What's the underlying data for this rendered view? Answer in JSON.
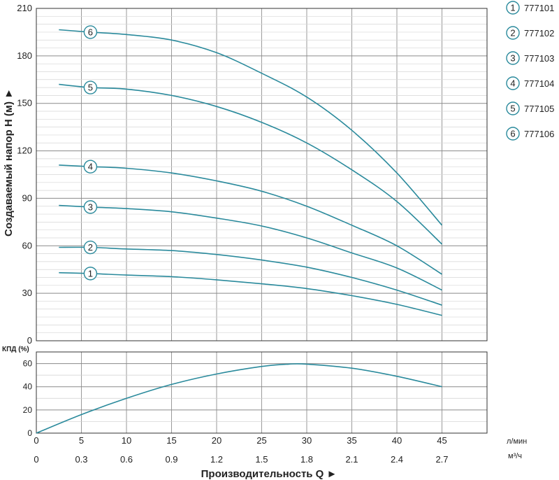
{
  "chart_data": [
    {
      "type": "line",
      "ylabel": "Создаваемый напор H (м) ►",
      "xlabel": "Производительность Q ►",
      "x_units_primary": "л/мин",
      "x_units_secondary": "м³/ч",
      "xlim": [
        0,
        50
      ],
      "ylim": [
        0,
        210
      ],
      "x_ticks": [
        0,
        5,
        10,
        15,
        20,
        25,
        30,
        35,
        40,
        45
      ],
      "x_ticks_secondary": [
        "0",
        "0.3",
        "0.6",
        "0.9",
        "1.2",
        "1.5",
        "1.8",
        "2.1",
        "2.4",
        "2.7"
      ],
      "y_ticks": [
        0,
        30,
        60,
        90,
        120,
        150,
        180,
        210
      ],
      "grid": true,
      "legend_position": "right",
      "line_color": "#2a8a9c",
      "series": [
        {
          "name": "777101",
          "marker": "1",
          "marker_x": 6,
          "x": [
            2.5,
            6,
            10,
            15,
            20,
            25,
            30,
            35,
            40,
            45
          ],
          "y": [
            43,
            42.5,
            41.5,
            40.5,
            38.5,
            36,
            33,
            28.5,
            23,
            16
          ]
        },
        {
          "name": "777102",
          "marker": "2",
          "marker_x": 6,
          "x": [
            2.5,
            6,
            10,
            15,
            20,
            25,
            30,
            35,
            40,
            45
          ],
          "y": [
            59,
            59,
            58,
            57,
            54.5,
            51,
            46.5,
            40,
            32,
            22.5
          ]
        },
        {
          "name": "777103",
          "marker": "3",
          "marker_x": 6,
          "x": [
            2.5,
            6,
            10,
            15,
            20,
            25,
            30,
            35,
            40,
            45
          ],
          "y": [
            85.5,
            84.5,
            83.5,
            81.5,
            77.5,
            72.5,
            65,
            55.5,
            46,
            32
          ]
        },
        {
          "name": "777104",
          "marker": "4",
          "marker_x": 6,
          "x": [
            2.5,
            6,
            10,
            15,
            20,
            25,
            30,
            35,
            40,
            45
          ],
          "y": [
            111,
            110,
            109,
            106,
            101,
            94.5,
            85,
            73,
            60,
            42
          ]
        },
        {
          "name": "777105",
          "marker": "5",
          "marker_x": 6,
          "x": [
            2.5,
            6,
            10,
            15,
            20,
            25,
            30,
            35,
            40,
            45
          ],
          "y": [
            162,
            160,
            159,
            155,
            148,
            138,
            125,
            108,
            88,
            61
          ]
        },
        {
          "name": "777106",
          "marker": "6",
          "marker_x": 6,
          "x": [
            2.5,
            6,
            10,
            15,
            20,
            25,
            30,
            35,
            40,
            45
          ],
          "y": [
            196.5,
            195,
            193.5,
            190,
            182,
            169,
            154,
            133,
            106,
            73
          ]
        }
      ]
    },
    {
      "type": "line",
      "ylabel": "КПД (%)",
      "xlim": [
        0,
        50
      ],
      "ylim": [
        0,
        70
      ],
      "y_ticks": [
        0,
        20,
        40,
        60
      ],
      "grid": true,
      "series": [
        {
          "x": [
            0,
            5,
            10,
            15,
            20,
            25,
            28,
            30,
            35,
            40,
            45
          ],
          "y": [
            0,
            16,
            30,
            42,
            51,
            57.5,
            59.5,
            59.5,
            56,
            49,
            40
          ]
        }
      ]
    }
  ]
}
